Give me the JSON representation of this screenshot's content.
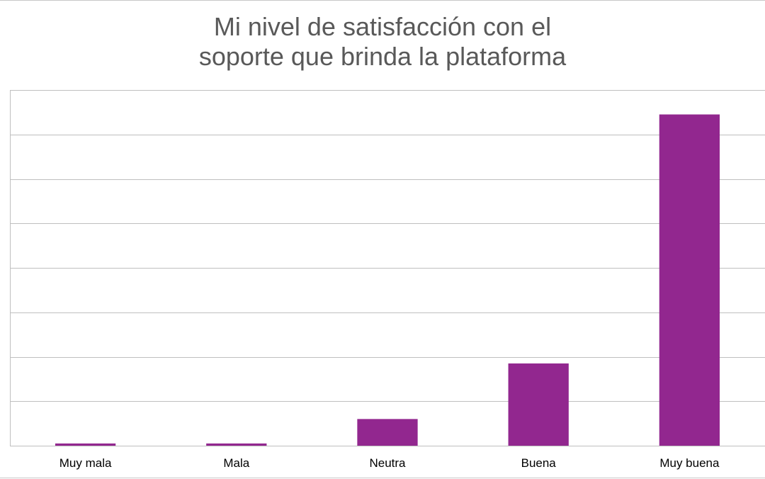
{
  "chart_data": {
    "type": "bar",
    "title_lines": [
      "Mi nivel de satisfacción con el",
      "soporte que brinda la plataforma"
    ],
    "title": "Mi nivel de satisfacción con el soporte que brinda la plataforma",
    "xlabel": "",
    "ylabel": "",
    "categories": [
      "Muy mala",
      "Mala",
      "Neutra",
      "Buena",
      "Muy buena"
    ],
    "values": [
      0.05,
      0.05,
      0.6,
      1.85,
      7.45
    ],
    "ylim": [
      0,
      8
    ],
    "ytick_step": 1,
    "grid": true,
    "legend": "none",
    "bar_color": "#92278f"
  }
}
